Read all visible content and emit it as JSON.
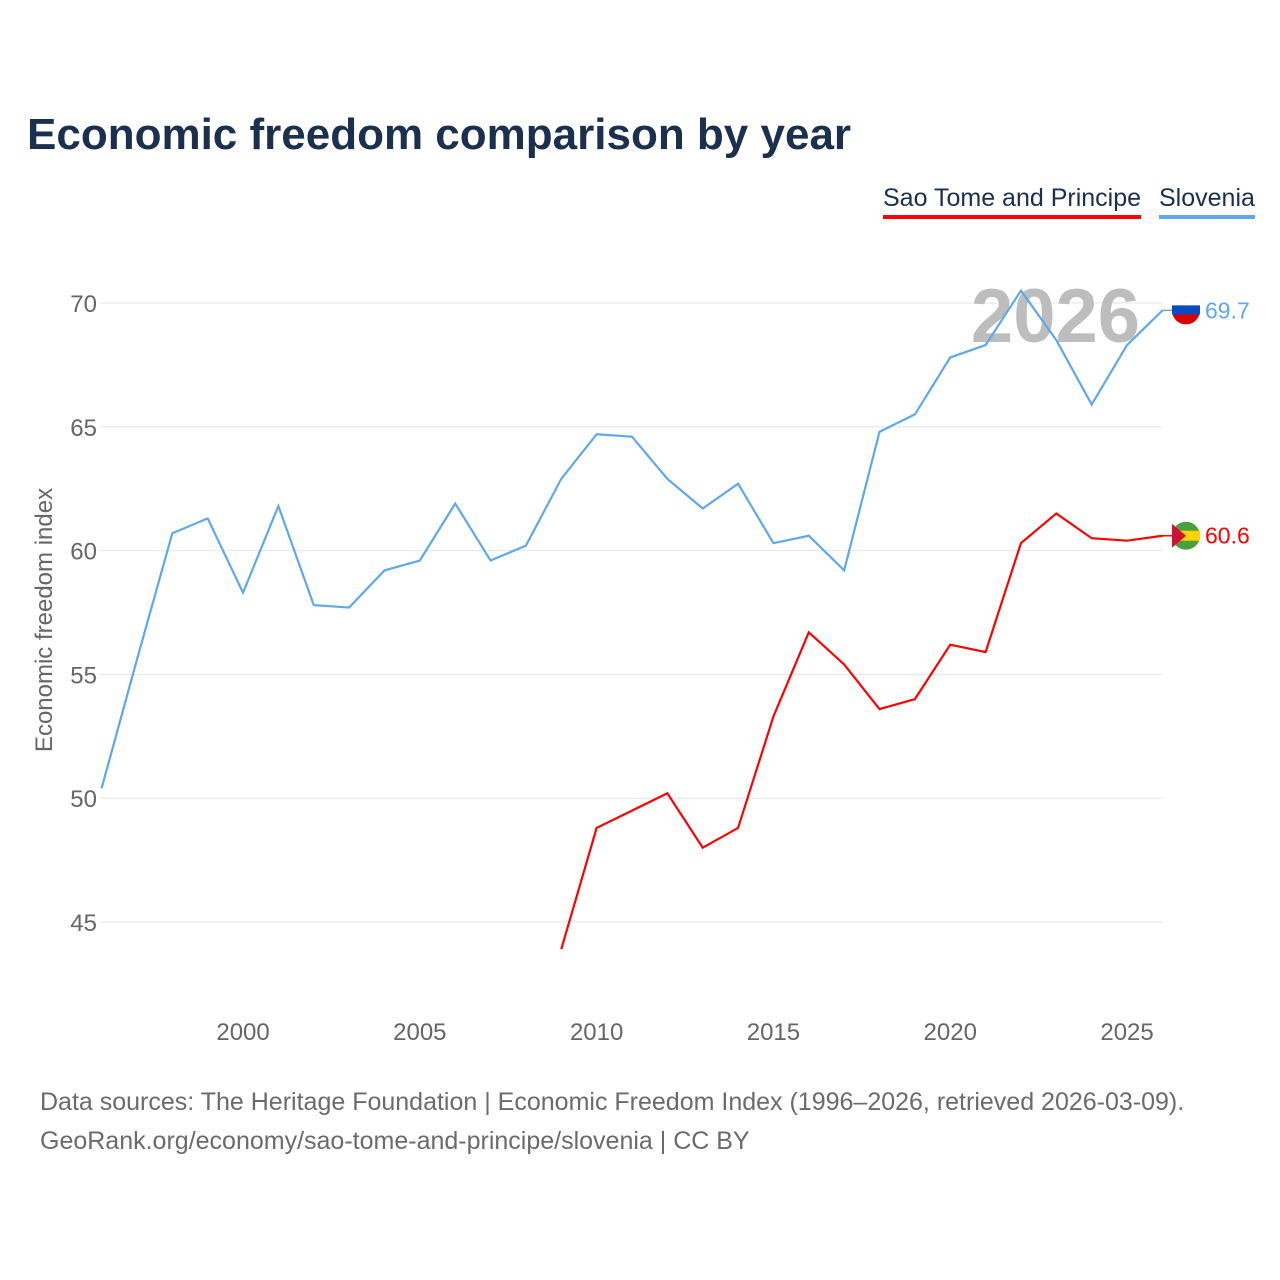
{
  "chart_data": {
    "type": "line",
    "title": "Economic freedom comparison by year",
    "xlabel": "",
    "ylabel": "Economic freedom index",
    "xlim": [
      1996,
      2026
    ],
    "ylim": [
      42,
      72
    ],
    "yticks": [
      45,
      50,
      55,
      60,
      65,
      70
    ],
    "xticks": [
      2000,
      2005,
      2010,
      2015,
      2020,
      2025
    ],
    "grid": true,
    "watermark_year": "2026",
    "legend_position": "top-right",
    "series": [
      {
        "name": "Sao Tome and Principe",
        "color": "#ff0000",
        "end_label": "60.6",
        "x": [
          2009,
          2010,
          2011,
          2012,
          2013,
          2014,
          2015,
          2016,
          2017,
          2018,
          2019,
          2020,
          2021,
          2022,
          2023,
          2024,
          2025,
          2026
        ],
        "values": [
          43.9,
          48.8,
          49.5,
          50.2,
          48.0,
          48.8,
          53.3,
          56.7,
          55.4,
          53.6,
          54.0,
          56.2,
          55.9,
          60.3,
          61.5,
          60.5,
          60.4,
          60.6
        ]
      },
      {
        "name": "Slovenia",
        "color": "#5fa8ea",
        "end_label": "69.7",
        "x": [
          1996,
          1997,
          1998,
          1999,
          2000,
          2001,
          2002,
          2003,
          2004,
          2005,
          2006,
          2007,
          2008,
          2009,
          2010,
          2011,
          2012,
          2013,
          2014,
          2015,
          2016,
          2017,
          2018,
          2019,
          2020,
          2021,
          2022,
          2023,
          2024,
          2025,
          2026
        ],
        "values": [
          50.4,
          55.6,
          60.7,
          61.3,
          58.3,
          61.8,
          57.8,
          57.7,
          59.2,
          59.6,
          61.9,
          59.6,
          60.2,
          62.9,
          64.7,
          64.6,
          62.9,
          61.7,
          62.7,
          60.3,
          60.6,
          59.2,
          64.8,
          65.5,
          67.8,
          68.3,
          70.5,
          68.5,
          65.9,
          68.3,
          69.7
        ]
      }
    ]
  },
  "footer": {
    "line1": "Data sources: The Heritage Foundation | Economic Freedom Index (1996–2026, retrieved 2026-03-09).",
    "line2": "GeoRank.org/economy/sao-tome-and-principe/slovenia | CC BY"
  }
}
